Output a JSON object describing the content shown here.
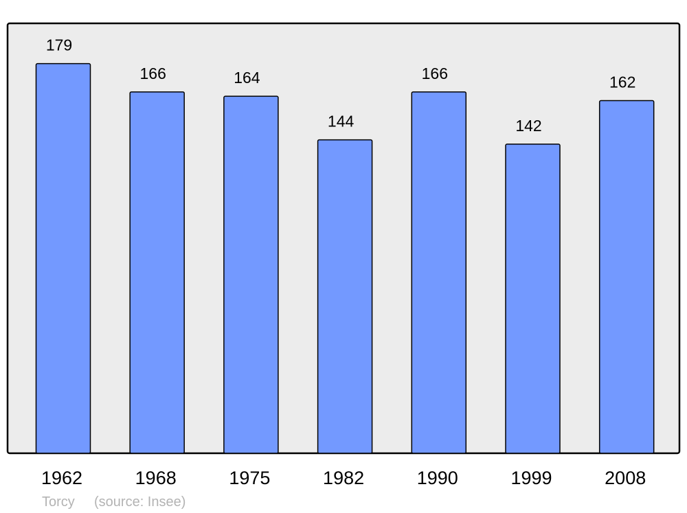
{
  "chart_data": {
    "type": "bar",
    "categories": [
      "1962",
      "1968",
      "1975",
      "1982",
      "1990",
      "1999",
      "2008"
    ],
    "values": [
      179,
      166,
      164,
      144,
      166,
      142,
      162
    ],
    "title": "",
    "xlabel": "",
    "ylabel": "",
    "ylim": [
      0,
      197.5
    ],
    "grid": false,
    "data_labels": true,
    "colors": {
      "bar": "#7399ff",
      "plot_background": "#ececec",
      "border": "#000000"
    }
  },
  "footer": {
    "place": "Torcy",
    "source": "(source: Insee)"
  }
}
